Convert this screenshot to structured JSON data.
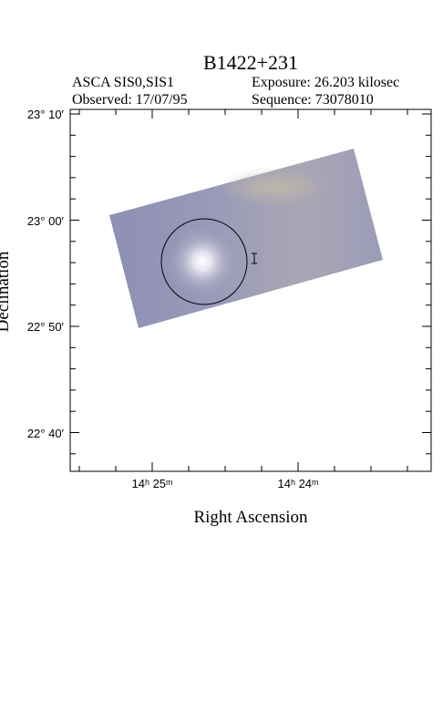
{
  "title": "B1422+231",
  "info": {
    "instrument": "ASCA SIS0,SIS1",
    "exposure": "Exposure: 26.203 kilosec",
    "observed": "Observed: 17/07/95",
    "sequence": "Sequence: 73078010"
  },
  "axes": {
    "x_label": "Right Ascension",
    "y_label": "Declination",
    "x_ticks": [
      "14ʰ 25ᵐ",
      "14ʰ 24ᵐ"
    ],
    "y_ticks": [
      "23° 10′",
      "23° 00′",
      "22° 50′",
      "22° 40′"
    ]
  }
}
